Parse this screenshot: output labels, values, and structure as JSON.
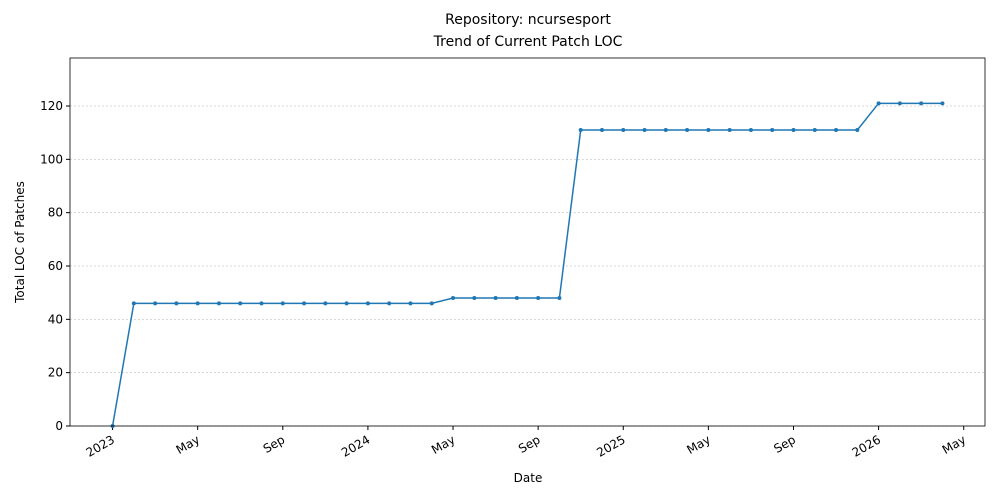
{
  "chart_data": {
    "type": "line",
    "title": "Repository: ncursesport",
    "subtitle": "Trend of Current Patch LOC",
    "x_label": "Date",
    "y_label": "Total LOC of Patches",
    "x": [
      "2023-01",
      "2023-02",
      "2023-03",
      "2023-04",
      "2023-05",
      "2023-06",
      "2023-07",
      "2023-08",
      "2023-09",
      "2023-10",
      "2023-11",
      "2023-12",
      "2024-01",
      "2024-02",
      "2024-03",
      "2024-04",
      "2024-05",
      "2024-06",
      "2024-07",
      "2024-08",
      "2024-09",
      "2024-10",
      "2024-11",
      "2024-12",
      "2025-01",
      "2025-02",
      "2025-03",
      "2025-04",
      "2025-05",
      "2025-06",
      "2025-07",
      "2025-08",
      "2025-09",
      "2025-10",
      "2025-11",
      "2025-12",
      "2026-01",
      "2026-02",
      "2026-03",
      "2026-04"
    ],
    "values": [
      0,
      46,
      46,
      46,
      46,
      46,
      46,
      46,
      46,
      46,
      46,
      46,
      46,
      46,
      46,
      46,
      48,
      48,
      48,
      48,
      48,
      48,
      111,
      111,
      111,
      111,
      111,
      111,
      111,
      111,
      111,
      111,
      111,
      111,
      111,
      111,
      121,
      121,
      121,
      121
    ],
    "color": "#1f77b4",
    "xlim": [
      "2022-11",
      "2026-06"
    ],
    "xticks": [
      {
        "value": "2023-01",
        "label": "2023"
      },
      {
        "value": "2023-05",
        "label": "May"
      },
      {
        "value": "2023-09",
        "label": "Sep"
      },
      {
        "value": "2024-01",
        "label": "2024"
      },
      {
        "value": "2024-05",
        "label": "May"
      },
      {
        "value": "2024-09",
        "label": "Sep"
      },
      {
        "value": "2025-01",
        "label": "2025"
      },
      {
        "value": "2025-05",
        "label": "May"
      },
      {
        "value": "2025-09",
        "label": "Sep"
      },
      {
        "value": "2026-01",
        "label": "2026"
      },
      {
        "value": "2026-05",
        "label": "May"
      }
    ],
    "ylim": [
      0,
      138
    ],
    "yticks": [
      0,
      20,
      40,
      60,
      80,
      100,
      120
    ],
    "grid": "y"
  }
}
